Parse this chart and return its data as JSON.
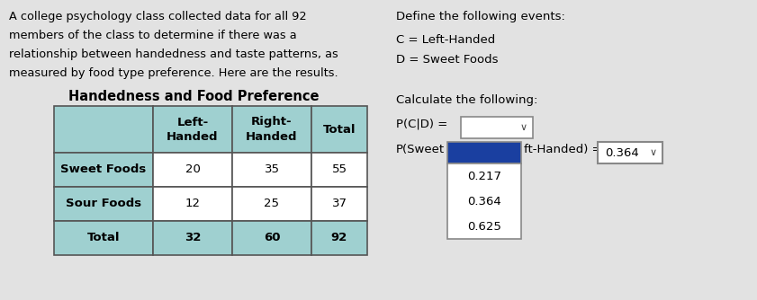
{
  "bg_color": "#e2e2e2",
  "intro_text_lines": [
    "A college psychology class collected data for all 92",
    "members of the class to determine if there was a",
    "relationship between handedness and taste patterns, as",
    "measured by food type preference. Here are the results."
  ],
  "table_title": "Handedness and Food Preference",
  "col_headers": [
    "Left-\nHanded",
    "Right-\nHanded",
    "Total"
  ],
  "row_headers": [
    "Sweet Foods",
    "Sour Foods",
    "Total"
  ],
  "table_data": [
    [
      20,
      35,
      55
    ],
    [
      12,
      25,
      37
    ],
    [
      32,
      60,
      92
    ]
  ],
  "header_bg": "#9fd0d0",
  "cell_bg": "#ffffff",
  "define_title": "Define the following events:",
  "define_c": "C = Left-Handed",
  "define_d": "D = Sweet Foods",
  "calc_title": "Calculate the following:",
  "pcond_label": "P(C|D) =",
  "psweet_label": "P(Sweet",
  "psweet_mid": "ft-Handed) =",
  "psweet_val": "0.364",
  "dropdown_values": [
    "0.217",
    "0.364",
    "0.625"
  ],
  "dropdown_selected_bg": "#1a3fa0",
  "dropdown_box_bg": "#ffffff",
  "box_border": "#888888",
  "chevron": "∨"
}
